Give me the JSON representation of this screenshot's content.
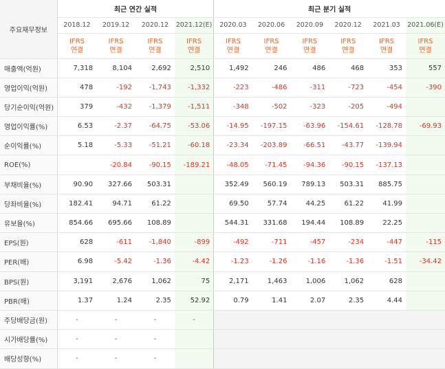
{
  "header": {
    "label": "주요재무정보",
    "annual_group": "최근 연간 실적",
    "quarter_group": "최근 분기 실적",
    "annual_periods": [
      "2018.12",
      "2019.12",
      "2020.12",
      "2021.12(E)"
    ],
    "quarter_periods": [
      "2020.03",
      "2020.06",
      "2020.09",
      "2020.12",
      "2021.03",
      "2021.06(E)"
    ],
    "ifrs_line1": "IFRS",
    "ifrs_line2": "연결"
  },
  "rows": [
    {
      "label": "매출액(억원)",
      "annual": [
        "7,318",
        "8,104",
        "2,692",
        "2,510"
      ],
      "quarter": [
        "1,492",
        "246",
        "486",
        "468",
        "353",
        "557"
      ]
    },
    {
      "label": "영업이익(억원)",
      "annual": [
        "478",
        "-192",
        "-1,743",
        "-1,332"
      ],
      "quarter": [
        "-223",
        "-486",
        "-311",
        "-723",
        "-454",
        "-390"
      ]
    },
    {
      "label": "당기순이익(억원)",
      "annual": [
        "379",
        "-432",
        "-1,379",
        "-1,511"
      ],
      "quarter": [
        "-348",
        "-502",
        "-323",
        "-205",
        "-494",
        ""
      ]
    },
    {
      "label": "영업이익률(%)",
      "annual": [
        "6.53",
        "-2.37",
        "-64.75",
        "-53.06"
      ],
      "quarter": [
        "-14.95",
        "-197.15",
        "-63.96",
        "-154.61",
        "-128.78",
        "-69.93"
      ]
    },
    {
      "label": "순이익률(%)",
      "annual": [
        "5.18",
        "-5.33",
        "-51.21",
        "-60.18"
      ],
      "quarter": [
        "-23.34",
        "-203.89",
        "-66.51",
        "-43.77",
        "-139.94",
        ""
      ]
    },
    {
      "label": "ROE(%)",
      "annual": [
        "",
        "-20.84",
        "-90.15",
        "-189.21"
      ],
      "quarter": [
        "-48.05",
        "-71.45",
        "-94.36",
        "-90.15",
        "-137.13",
        ""
      ]
    },
    {
      "label": "부채비율(%)",
      "annual": [
        "90.90",
        "327.66",
        "503.31",
        ""
      ],
      "quarter": [
        "352.49",
        "560.19",
        "789.13",
        "503.31",
        "885.75",
        ""
      ]
    },
    {
      "label": "당좌비율(%)",
      "annual": [
        "182.41",
        "94.71",
        "61.22",
        ""
      ],
      "quarter": [
        "69.50",
        "57.74",
        "44.25",
        "61.22",
        "41.99",
        ""
      ]
    },
    {
      "label": "유보율(%)",
      "annual": [
        "854.66",
        "695.66",
        "108.89",
        ""
      ],
      "quarter": [
        "544.31",
        "331.68",
        "194.44",
        "108.89",
        "22.25",
        ""
      ]
    },
    {
      "label": "EPS(원)",
      "annual": [
        "628",
        "-611",
        "-1,840",
        "-899"
      ],
      "quarter": [
        "-492",
        "-711",
        "-457",
        "-234",
        "-447",
        "-115"
      ]
    },
    {
      "label": "PER(배)",
      "annual": [
        "6.98",
        "-5.42",
        "-1.36",
        "-4.42"
      ],
      "quarter": [
        "-1.23",
        "-1.26",
        "-1.16",
        "-1.36",
        "-1.51",
        "-34.42"
      ]
    },
    {
      "label": "BPS(원)",
      "annual": [
        "3,191",
        "2,676",
        "1,062",
        "75"
      ],
      "quarter": [
        "2,171",
        "1,463",
        "1,006",
        "1,062",
        "628",
        ""
      ]
    },
    {
      "label": "PBR(배)",
      "annual": [
        "1.37",
        "1.24",
        "2.35",
        "52.92"
      ],
      "quarter": [
        "0.79",
        "1.41",
        "2.07",
        "2.35",
        "4.44",
        ""
      ]
    },
    {
      "label": "주당배당금(원)",
      "annual": [
        "-",
        "-",
        "-",
        "-"
      ],
      "quarter": [
        "",
        "",
        "",
        "",
        "",
        ""
      ]
    },
    {
      "label": "시가배당률(%)",
      "annual": [
        "-",
        "-",
        "-",
        ""
      ],
      "quarter": [
        "",
        "",
        "",
        "",
        "",
        ""
      ]
    },
    {
      "label": "배당성향(%)",
      "annual": [
        "-",
        "-",
        "-",
        ""
      ],
      "quarter": [
        "",
        "",
        "",
        "",
        "",
        ""
      ]
    }
  ],
  "colors": {
    "negative": "#e0301e",
    "ifrs": "#f26522",
    "estimate_bg": "#f3faf0"
  }
}
